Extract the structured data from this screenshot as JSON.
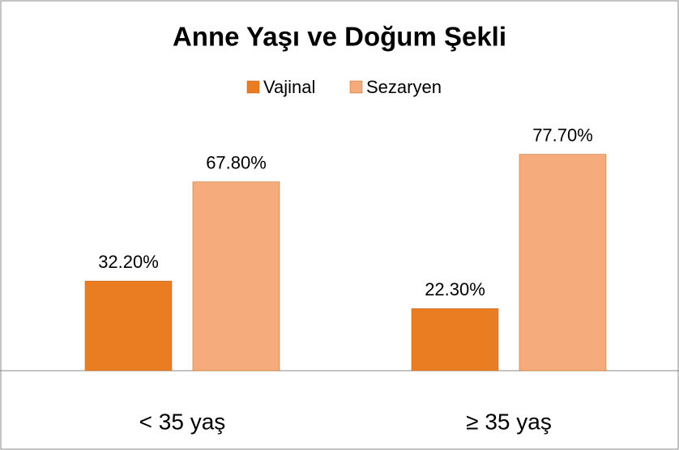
{
  "chart_data": {
    "type": "bar",
    "title": "Anne Yaşı ve Doğum Şekli",
    "categories": [
      "< 35 yaş",
      "≥ 35 yaş"
    ],
    "series": [
      {
        "name": "Vajinal",
        "color": "#ea7d22",
        "values": [
          32.2,
          22.3
        ],
        "value_labels": [
          "32.20%",
          "22.30%"
        ]
      },
      {
        "name": "Sezaryen",
        "color": "#f6ab7c",
        "values": [
          67.8,
          77.7
        ],
        "value_labels": [
          "67.80%",
          "77.70%"
        ]
      }
    ],
    "ylim": [
      0,
      100
    ],
    "legend": "top"
  }
}
